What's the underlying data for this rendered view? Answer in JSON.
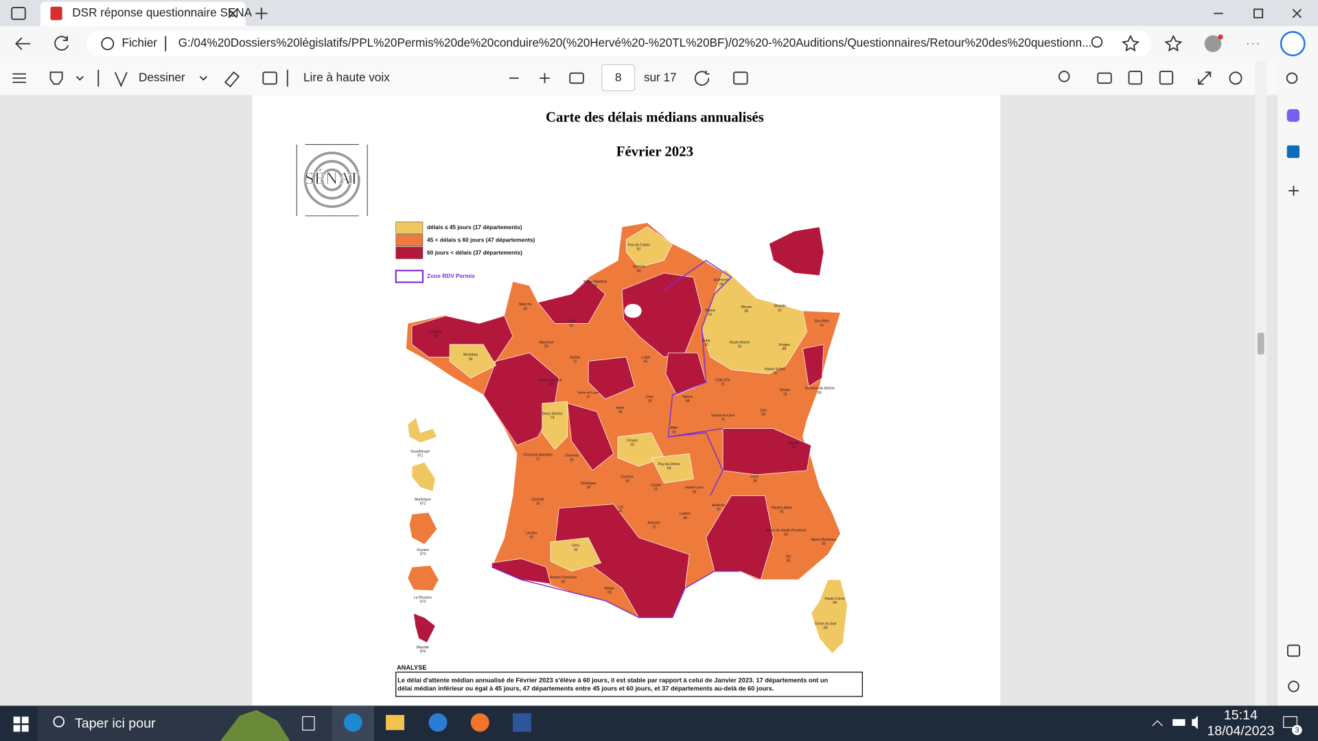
{
  "browser": {
    "tab_title": "DSR réponse questionnaire SENA",
    "address_label": "Fichier",
    "url": "G:/04%20Dossiers%20législatifs/PPL%20Permis%20de%20conduire%20(%20Hervé%20-%20TL%20BF)/02%20-%20Auditions/Questionnaires/Retour%20des%20questionn..."
  },
  "pdf_toolbar": {
    "draw": "Dessiner",
    "read_aloud": "Lire à haute voix",
    "page": "8",
    "page_total": "sur 17"
  },
  "document": {
    "title": "Carte des délais médians annualisés",
    "subtitle": "Février 2023",
    "logo": "SÉNAT",
    "legend": [
      {
        "label": "délais ≤ 45 jours (17 départements)",
        "color": "#f0c862"
      },
      {
        "label": "45 < délais ≤ 60 jours (47 départements)",
        "color": "#ee7a3c"
      },
      {
        "label": "60 jours < délais (37 départements)",
        "color": "#b3173c"
      }
    ],
    "zone": "Zone RDV Permis",
    "map_labels": [
      {
        "name": "Pas-de-Calais",
        "code": "62"
      },
      {
        "name": "Somme",
        "code": "80"
      },
      {
        "name": "Seine-Maritime",
        "code": "76"
      },
      {
        "name": "Ardennes",
        "code": "08"
      },
      {
        "name": "Manche",
        "code": "50"
      },
      {
        "name": "Orne",
        "code": "61"
      },
      {
        "name": "Marne",
        "code": "51"
      },
      {
        "name": "Meuse",
        "code": "55"
      },
      {
        "name": "Moselle",
        "code": "57"
      },
      {
        "name": "Bas-Rhin",
        "code": "67"
      },
      {
        "name": "Finistère",
        "code": "29"
      },
      {
        "name": "Morbihan",
        "code": "56"
      },
      {
        "name": "Mayenne",
        "code": "53"
      },
      {
        "name": "Sarthe",
        "code": "72"
      },
      {
        "name": "Aube",
        "code": "10"
      },
      {
        "name": "Haute-Marne",
        "code": "52"
      },
      {
        "name": "Vosges",
        "code": "88"
      },
      {
        "name": "Loiret",
        "code": "45"
      },
      {
        "name": "Maine-et-Loire",
        "code": "49"
      },
      {
        "name": "Indre-et-Loire",
        "code": "37"
      },
      {
        "name": "Côte-d'Or",
        "code": "21"
      },
      {
        "name": "Haute-Saône",
        "code": "70"
      },
      {
        "name": "Doubs",
        "code": "25"
      },
      {
        "name": "Territoire-de-Belfort",
        "code": "90"
      },
      {
        "name": "Cher",
        "code": "18"
      },
      {
        "name": "Nièvre",
        "code": "58"
      },
      {
        "name": "Indre",
        "code": "36"
      },
      {
        "name": "Deux-Sèvres",
        "code": "79"
      },
      {
        "name": "Jura",
        "code": "39"
      },
      {
        "name": "Saône-et-Loire",
        "code": "71"
      },
      {
        "name": "Allier",
        "code": "03"
      },
      {
        "name": "Creuse",
        "code": "23"
      },
      {
        "name": "Charente-Maritime",
        "code": "17"
      },
      {
        "name": "Charente",
        "code": "16"
      },
      {
        "name": "Puy-de-Dôme",
        "code": "63"
      },
      {
        "name": "Savoie",
        "code": "73"
      },
      {
        "name": "Isère",
        "code": "38"
      },
      {
        "name": "Corrèze",
        "code": "19"
      },
      {
        "name": "Cantal",
        "code": "15"
      },
      {
        "name": "Haute-Loire",
        "code": "43"
      },
      {
        "name": "Dordogne",
        "code": "24"
      },
      {
        "name": "Gironde",
        "code": "33"
      },
      {
        "name": "Ardèche",
        "code": "07"
      },
      {
        "name": "Hautes-Alpes",
        "code": "05"
      },
      {
        "name": "Lot",
        "code": "46"
      },
      {
        "name": "Lozère",
        "code": "48"
      },
      {
        "name": "Aveyron",
        "code": "12"
      },
      {
        "name": "Alpes-de-Haute-Provence",
        "code": "04"
      },
      {
        "name": "Landes",
        "code": "40"
      },
      {
        "name": "Alpes-Maritimes",
        "code": "06"
      },
      {
        "name": "Gers",
        "code": "32"
      },
      {
        "name": "Var",
        "code": "83"
      },
      {
        "name": "Hautes-Pyrénées",
        "code": "65"
      },
      {
        "name": "Ariège",
        "code": "09"
      },
      {
        "name": "Haute-Corse",
        "code": "2B"
      },
      {
        "name": "Corse-du-Sud",
        "code": "2A"
      },
      {
        "name": "Guadeloupe",
        "code": "971"
      },
      {
        "name": "Martinique",
        "code": "972"
      },
      {
        "name": "Guyane",
        "code": "973"
      },
      {
        "name": "La Réunion",
        "code": "974"
      },
      {
        "name": "Mayotte",
        "code": "976"
      }
    ],
    "analysis_heading": "ANALYSE",
    "analysis_lines": [
      "Le délai d'attente médian annualisé de Février 2023 s'élève à 60 jours, il est stable par rapport à celui de Janvier 2023. 17 départements ont un",
      "délai médian inférieur ou égal à 45 jours, 47 départements entre 45 jours et 60 jours, et 37 départements au-delà de 60 jours."
    ]
  },
  "taskbar": {
    "search": "Taper ici pour",
    "time": "15:14",
    "date": "18/04/2023",
    "notifications": "3"
  }
}
